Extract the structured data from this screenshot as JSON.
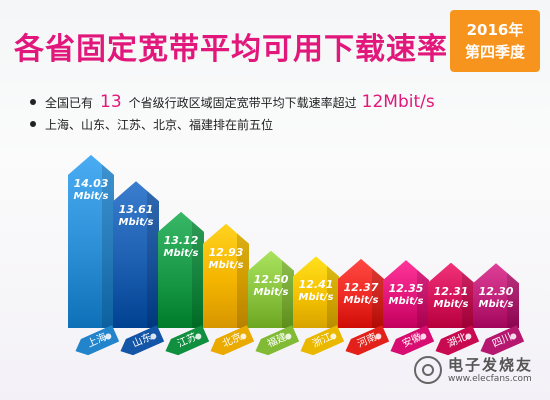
{
  "header": {
    "title": "各省固定宽带平均可用下载速率",
    "badge_line1": "2016年",
    "badge_line2": "第四季度"
  },
  "bullets": {
    "line1_prefix": "全国已有",
    "line1_count": "13",
    "line1_middle": "个省级行政区域固定宽带平均下载速率超过",
    "line1_speed": "12Mbit/s",
    "line2": "上海、山东、江苏、北京、福建排在前五位"
  },
  "watermark": {
    "title": "电子发烧友",
    "url": "www.elecfans.com"
  },
  "chart_data": {
    "type": "bar",
    "categories": [
      "上海",
      "山东",
      "江苏",
      "北京",
      "福建",
      "浙江",
      "河南",
      "安徽",
      "湖北",
      "四川"
    ],
    "values": [
      14.03,
      13.61,
      13.12,
      12.93,
      12.5,
      12.41,
      12.37,
      12.35,
      12.31,
      12.3
    ],
    "value_labels": [
      "14.03",
      "13.61",
      "13.12",
      "12.93",
      "12.50",
      "12.41",
      "12.37",
      "12.35",
      "12.31",
      "12.30"
    ],
    "unit": "Mbit/s",
    "colors": [
      "#2c8fd6",
      "#1d5fb0",
      "#1a9a48",
      "#f4b400",
      "#8bc43f",
      "#f5c200",
      "#ee2a24",
      "#e2177b",
      "#d4145a",
      "#c0227a"
    ]
  }
}
